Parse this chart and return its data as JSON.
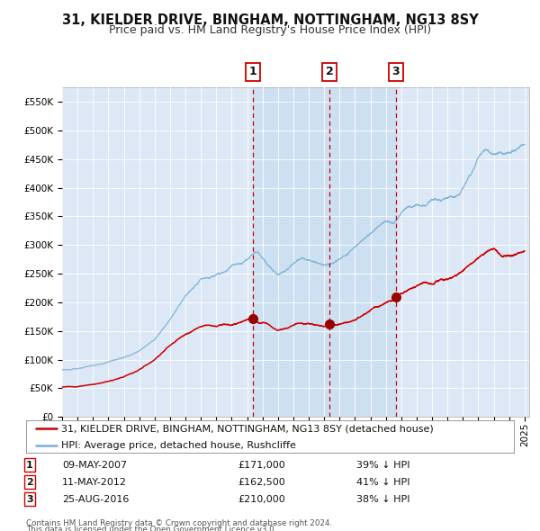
{
  "title": "31, KIELDER DRIVE, BINGHAM, NOTTINGHAM, NG13 8SY",
  "subtitle": "Price paid vs. HM Land Registry's House Price Index (HPI)",
  "ylim": [
    0,
    575000
  ],
  "xlim_start": 1995.0,
  "xlim_end": 2025.3,
  "background_color": "#ffffff",
  "plot_bg_color": "#dce8f5",
  "grid_color": "#ffffff",
  "red_line_color": "#cc0000",
  "blue_line_color": "#7bafd4",
  "sale_marker_color": "#990000",
  "vline_color_red": "#cc0000",
  "shade_color": "#c8ddf0",
  "title_fontsize": 10.5,
  "subtitle_fontsize": 9,
  "tick_fontsize": 7.5,
  "legend_fontsize": 8,
  "sales": [
    {
      "num": 1,
      "date_x": 2007.36,
      "price": 171000,
      "label": "09-MAY-2007",
      "pct": "39% ↓ HPI"
    },
    {
      "num": 2,
      "date_x": 2012.36,
      "price": 162500,
      "label": "11-MAY-2012",
      "pct": "41% ↓ HPI"
    },
    {
      "num": 3,
      "date_x": 2016.65,
      "price": 210000,
      "label": "25-AUG-2016",
      "pct": "38% ↓ HPI"
    }
  ],
  "footer_line1": "Contains HM Land Registry data © Crown copyright and database right 2024.",
  "footer_line2": "This data is licensed under the Open Government Licence v3.0.",
  "legend_red": "31, KIELDER DRIVE, BINGHAM, NOTTINGHAM, NG13 8SY (detached house)",
  "legend_blue": "HPI: Average price, detached house, Rushcliffe",
  "hpi_keypoints": [
    [
      1995.0,
      82000
    ],
    [
      1996.0,
      84000
    ],
    [
      1997.0,
      90000
    ],
    [
      1998.0,
      96000
    ],
    [
      1999.0,
      103000
    ],
    [
      2000.0,
      115000
    ],
    [
      2001.0,
      135000
    ],
    [
      2002.0,
      170000
    ],
    [
      2003.0,
      210000
    ],
    [
      2004.0,
      240000
    ],
    [
      2005.0,
      248000
    ],
    [
      2006.0,
      262000
    ],
    [
      2007.0,
      278000
    ],
    [
      2007.5,
      287000
    ],
    [
      2008.0,
      275000
    ],
    [
      2008.5,
      262000
    ],
    [
      2009.0,
      248000
    ],
    [
      2009.5,
      255000
    ],
    [
      2010.0,
      268000
    ],
    [
      2010.5,
      275000
    ],
    [
      2011.0,
      272000
    ],
    [
      2011.5,
      268000
    ],
    [
      2012.0,
      265000
    ],
    [
      2012.5,
      268000
    ],
    [
      2013.0,
      275000
    ],
    [
      2013.5,
      283000
    ],
    [
      2014.0,
      295000
    ],
    [
      2014.5,
      308000
    ],
    [
      2015.0,
      320000
    ],
    [
      2015.5,
      335000
    ],
    [
      2016.0,
      345000
    ],
    [
      2016.5,
      338000
    ],
    [
      2017.0,
      355000
    ],
    [
      2017.5,
      365000
    ],
    [
      2018.0,
      370000
    ],
    [
      2018.5,
      372000
    ],
    [
      2019.0,
      375000
    ],
    [
      2019.5,
      378000
    ],
    [
      2020.0,
      382000
    ],
    [
      2020.5,
      388000
    ],
    [
      2021.0,
      400000
    ],
    [
      2021.5,
      420000
    ],
    [
      2022.0,
      450000
    ],
    [
      2022.5,
      465000
    ],
    [
      2023.0,
      460000
    ],
    [
      2023.5,
      458000
    ],
    [
      2024.0,
      462000
    ],
    [
      2024.5,
      468000
    ],
    [
      2025.0,
      472000
    ]
  ],
  "prop_keypoints": [
    [
      1995.0,
      52000
    ],
    [
      1996.0,
      53000
    ],
    [
      1997.0,
      56000
    ],
    [
      1998.0,
      62000
    ],
    [
      1999.0,
      70000
    ],
    [
      2000.0,
      82000
    ],
    [
      2001.0,
      100000
    ],
    [
      2002.0,
      125000
    ],
    [
      2003.0,
      145000
    ],
    [
      2004.0,
      158000
    ],
    [
      2005.0,
      158000
    ],
    [
      2006.0,
      162000
    ],
    [
      2007.0,
      168000
    ],
    [
      2007.4,
      171000
    ],
    [
      2007.5,
      170000
    ],
    [
      2007.8,
      165000
    ],
    [
      2008.0,
      163000
    ],
    [
      2008.5,
      158000
    ],
    [
      2009.0,
      150000
    ],
    [
      2009.5,
      154000
    ],
    [
      2010.0,
      162000
    ],
    [
      2010.5,
      165000
    ],
    [
      2011.0,
      163000
    ],
    [
      2011.5,
      160000
    ],
    [
      2012.0,
      158000
    ],
    [
      2012.4,
      162500
    ],
    [
      2012.5,
      162000
    ],
    [
      2013.0,
      163000
    ],
    [
      2013.5,
      165000
    ],
    [
      2014.0,
      170000
    ],
    [
      2014.5,
      178000
    ],
    [
      2015.0,
      185000
    ],
    [
      2015.5,
      193000
    ],
    [
      2016.0,
      198000
    ],
    [
      2016.5,
      205000
    ],
    [
      2016.65,
      210000
    ],
    [
      2017.0,
      215000
    ],
    [
      2017.5,
      222000
    ],
    [
      2018.0,
      228000
    ],
    [
      2018.5,
      233000
    ],
    [
      2019.0,
      232000
    ],
    [
      2019.5,
      238000
    ],
    [
      2020.0,
      242000
    ],
    [
      2020.5,
      248000
    ],
    [
      2021.0,
      256000
    ],
    [
      2021.5,
      265000
    ],
    [
      2022.0,
      278000
    ],
    [
      2022.5,
      288000
    ],
    [
      2023.0,
      292000
    ],
    [
      2023.5,
      285000
    ],
    [
      2024.0,
      280000
    ],
    [
      2024.5,
      285000
    ],
    [
      2025.0,
      290000
    ]
  ]
}
